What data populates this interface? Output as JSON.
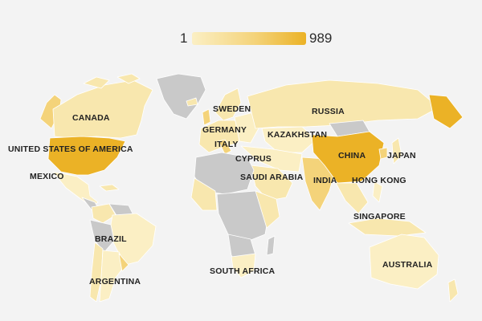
{
  "legend": {
    "min": "1",
    "max": "989",
    "colors": {
      "low": "#fbefc4",
      "mid": "#f4d37a",
      "high": "#ebb226",
      "no_data": "#c9c9c9"
    }
  },
  "labels": {
    "canada": "CANADA",
    "usa": "UNITED STATES OF AMERICA",
    "mexico": "MEXICO",
    "brazil": "BRAZIL",
    "argentina": "ARGENTINA",
    "sweden": "SWEDEN",
    "germany": "GERMANY",
    "italy": "ITALY",
    "cyprus": "CYPRUS",
    "saudi_arabia": "SAUDI ARABIA",
    "south_africa": "SOUTH AFRICA",
    "russia": "RUSSIA",
    "kazakhstan": "KAZAKHSTAN",
    "china": "CHINA",
    "japan": "JAPAN",
    "india": "INDIA",
    "hong_kong": "HONG KONG",
    "singapore": "SINGAPORE",
    "australia": "AUSTRALIA"
  }
}
